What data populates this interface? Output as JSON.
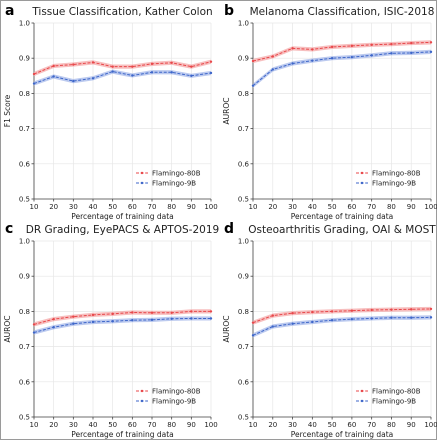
{
  "colors": {
    "flamingo80b": "#e8474a",
    "flamingo80b_band": "#f4a9aa",
    "flamingo9b": "#3d66c9",
    "flamingo9b_band": "#a6b8ea"
  },
  "chart_data": [
    {
      "type": "line",
      "letter": "a",
      "title": "Tissue Classification, Kather Colon",
      "xlabel": "Percentage of training data",
      "ylabel": "F1 Score",
      "x": [
        10,
        20,
        30,
        40,
        50,
        60,
        70,
        80,
        90,
        100
      ],
      "xticks": [
        "10",
        "20",
        "30",
        "40",
        "50",
        "60",
        "70",
        "80",
        "90",
        "100"
      ],
      "ylim": [
        0.5,
        1.0
      ],
      "yticks": [
        "0.5",
        "0.6",
        "0.7",
        "0.8",
        "0.9",
        "1.0"
      ],
      "grid": true,
      "legend": "lower-right",
      "series": [
        {
          "name": "Flamingo-80B",
          "values": [
            0.855,
            0.878,
            0.882,
            0.888,
            0.876,
            0.876,
            0.884,
            0.887,
            0.876,
            0.89
          ]
        },
        {
          "name": "Flamingo-9B",
          "values": [
            0.828,
            0.848,
            0.835,
            0.843,
            0.862,
            0.851,
            0.86,
            0.86,
            0.85,
            0.858
          ]
        }
      ]
    },
    {
      "type": "line",
      "letter": "b",
      "title": "Melanoma Classification, ISIC-2018",
      "xlabel": "Percentage of training data",
      "ylabel": "AUROC",
      "x": [
        10,
        20,
        30,
        40,
        50,
        60,
        70,
        80,
        90,
        100
      ],
      "xticks": [
        "10",
        "20",
        "30",
        "40",
        "50",
        "60",
        "70",
        "80",
        "90",
        "100"
      ],
      "ylim": [
        0.5,
        1.0
      ],
      "yticks": [
        "0.5",
        "0.6",
        "0.7",
        "0.8",
        "0.9",
        "1.0"
      ],
      "grid": true,
      "legend": "lower-right",
      "series": [
        {
          "name": "Flamingo-80B",
          "values": [
            0.892,
            0.905,
            0.928,
            0.925,
            0.932,
            0.935,
            0.938,
            0.94,
            0.943,
            0.945
          ]
        },
        {
          "name": "Flamingo-9B",
          "values": [
            0.822,
            0.868,
            0.885,
            0.893,
            0.9,
            0.903,
            0.908,
            0.914,
            0.915,
            0.918
          ]
        }
      ]
    },
    {
      "type": "line",
      "letter": "c",
      "title": "DR Grading, EyePACS & APTOS-2019",
      "xlabel": "Percentage of training data",
      "ylabel": "AUROC",
      "x": [
        10,
        20,
        30,
        40,
        50,
        60,
        70,
        80,
        90,
        100
      ],
      "xticks": [
        "10",
        "20",
        "30",
        "40",
        "50",
        "60",
        "70",
        "80",
        "90",
        "100"
      ],
      "ylim": [
        0.5,
        1.0
      ],
      "yticks": [
        "0.5",
        "0.6",
        "0.7",
        "0.8",
        "0.9",
        "1.0"
      ],
      "grid": true,
      "legend": "lower-right",
      "series": [
        {
          "name": "Flamingo-80B",
          "values": [
            0.763,
            0.778,
            0.785,
            0.79,
            0.793,
            0.797,
            0.796,
            0.796,
            0.8,
            0.8
          ]
        },
        {
          "name": "Flamingo-9B",
          "values": [
            0.74,
            0.755,
            0.765,
            0.77,
            0.772,
            0.775,
            0.776,
            0.779,
            0.78,
            0.78
          ]
        }
      ]
    },
    {
      "type": "line",
      "letter": "d",
      "title": "Osteoarthritis Grading, OAI & MOST",
      "xlabel": "Percentage of training data",
      "ylabel": "AUROC",
      "x": [
        10,
        20,
        30,
        40,
        50,
        60,
        70,
        80,
        90,
        100
      ],
      "xticks": [
        "10",
        "20",
        "30",
        "40",
        "50",
        "60",
        "70",
        "80",
        "90",
        "100"
      ],
      "ylim": [
        0.5,
        1.0
      ],
      "yticks": [
        "0.5",
        "0.6",
        "0.7",
        "0.8",
        "0.9",
        "1.0"
      ],
      "grid": true,
      "legend": "lower-right",
      "series": [
        {
          "name": "Flamingo-80B",
          "values": [
            0.768,
            0.788,
            0.795,
            0.798,
            0.8,
            0.802,
            0.804,
            0.805,
            0.806,
            0.807
          ]
        },
        {
          "name": "Flamingo-9B",
          "values": [
            0.732,
            0.757,
            0.765,
            0.77,
            0.775,
            0.778,
            0.78,
            0.782,
            0.782,
            0.783
          ]
        }
      ]
    }
  ]
}
